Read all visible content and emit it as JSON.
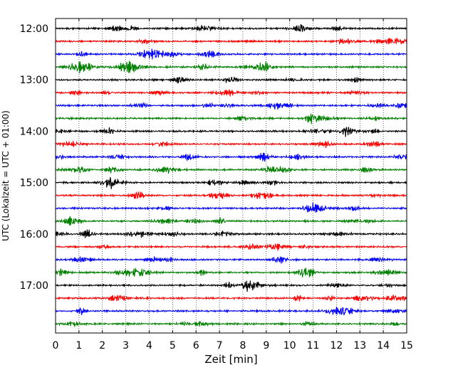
{
  "chart_data": {
    "type": "line",
    "title": "",
    "xlabel": "Zeit  [min]",
    "ylabel": "UTC (Lokalzeit = UTC + 01:00)",
    "xlim": [
      0,
      15
    ],
    "x_ticks": [
      "0",
      "1",
      "2",
      "3",
      "4",
      "5",
      "6",
      "7",
      "8",
      "9",
      "10",
      "11",
      "12",
      "13",
      "14",
      "15"
    ],
    "y_tick_labels": [
      "12:00",
      "13:00",
      "14:00",
      "15:00",
      "16:00",
      "17:00"
    ],
    "grid": {
      "x": true,
      "y": false,
      "style": "dotted"
    },
    "trace_interval_min": 15,
    "start_time": "12:00",
    "trace_colors": [
      "#000000",
      "#ff0000",
      "#0000ff",
      "#008000"
    ],
    "traces": [
      {
        "time": "12:00",
        "color": "#000000"
      },
      {
        "time": "12:15",
        "color": "#ff0000"
      },
      {
        "time": "12:30",
        "color": "#0000ff"
      },
      {
        "time": "12:45",
        "color": "#008000"
      },
      {
        "time": "13:00",
        "color": "#000000"
      },
      {
        "time": "13:15",
        "color": "#ff0000"
      },
      {
        "time": "13:30",
        "color": "#0000ff"
      },
      {
        "time": "13:45",
        "color": "#008000"
      },
      {
        "time": "14:00",
        "color": "#000000"
      },
      {
        "time": "14:15",
        "color": "#ff0000"
      },
      {
        "time": "14:30",
        "color": "#0000ff"
      },
      {
        "time": "14:45",
        "color": "#008000"
      },
      {
        "time": "15:00",
        "color": "#000000"
      },
      {
        "time": "15:15",
        "color": "#ff0000"
      },
      {
        "time": "15:30",
        "color": "#0000ff"
      },
      {
        "time": "15:45",
        "color": "#008000"
      },
      {
        "time": "16:00",
        "color": "#000000"
      },
      {
        "time": "16:15",
        "color": "#ff0000"
      },
      {
        "time": "16:30",
        "color": "#0000ff"
      },
      {
        "time": "16:45",
        "color": "#008000"
      },
      {
        "time": "17:00",
        "color": "#000000"
      },
      {
        "time": "17:15",
        "color": "#ff0000"
      },
      {
        "time": "17:30",
        "color": "#0000ff"
      },
      {
        "time": "17:45",
        "color": "#008000"
      }
    ]
  }
}
